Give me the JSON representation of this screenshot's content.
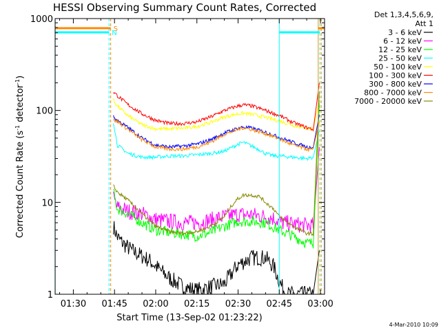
{
  "chart_data": {
    "type": "line",
    "title": "HESSI Observing Summary Count Rates, Corrected",
    "xlabel": "Start Time (13-Sep-02 01:23:22)",
    "ylabel_main": "Corrected Count Rate (s",
    "ylabel_sup1": "-1",
    "ylabel_mid": " detector",
    "ylabel_sup2": "-1",
    "ylabel_end": ")",
    "y_scale": "log",
    "xlim": [
      "01:23:22",
      "03:01:30"
    ],
    "ylim": [
      1,
      1000
    ],
    "x_tick_labels": [
      "01:30",
      "01:45",
      "02:00",
      "02:15",
      "02:30",
      "02:45",
      "03:00"
    ],
    "x_tick_minutes": [
      90,
      105,
      120,
      135,
      150,
      165,
      180
    ],
    "y_tick_labels": [
      "1",
      "10",
      "100",
      "1000"
    ],
    "y_tick_values": [
      1,
      10,
      100,
      1000
    ],
    "legend_header": [
      "Det 1,3,4,5,6,9,",
      "Att 1"
    ],
    "series": [
      {
        "name": "3 - 6 keV",
        "color": "#000000",
        "x_min": [
          104.6,
          106,
          108,
          110,
          112,
          115,
          118,
          121,
          125,
          130,
          135,
          140,
          145,
          150,
          155,
          160,
          163,
          164.6,
          166,
          168,
          171,
          175,
          177.5,
          179.6
        ],
        "values": [
          5.5,
          4.2,
          3.6,
          3.2,
          2.9,
          2.6,
          2.3,
          1.9,
          1.5,
          1.2,
          1.1,
          1.2,
          1.3,
          2.1,
          2.5,
          2.5,
          2.0,
          1.5,
          1.2,
          1.0,
          1.0,
          1.0,
          1.0,
          3.0
        ]
      },
      {
        "name": "6 - 12 keV",
        "color": "#ff00ff",
        "x_min": [
          104.6,
          106,
          110,
          115,
          120,
          125,
          130,
          135,
          140,
          145,
          150,
          155,
          160,
          163,
          164.6,
          166,
          170,
          175,
          177.5,
          179.6
        ],
        "values": [
          11,
          8.8,
          8.0,
          7.5,
          6.5,
          6.2,
          6.0,
          6.0,
          6.4,
          7.0,
          7.4,
          7.3,
          7.0,
          6.7,
          6.3,
          6.0,
          5.8,
          5.6,
          5.6,
          40
        ]
      },
      {
        "name": "12 - 25 keV",
        "color": "#00ff00",
        "x_min": [
          104.6,
          106,
          110,
          115,
          120,
          125,
          130,
          135,
          140,
          145,
          150,
          155,
          160,
          165,
          170,
          175,
          177.5,
          179.6
        ],
        "values": [
          13,
          8.5,
          7.5,
          6.0,
          5.0,
          4.7,
          4.5,
          4.3,
          4.7,
          5.5,
          6.2,
          6.2,
          6.0,
          5.0,
          4.3,
          3.6,
          3.6,
          120
        ]
      },
      {
        "name": "25 - 50 keV",
        "color": "#00ffff",
        "x_min": [
          104.6,
          106,
          110,
          115,
          120,
          125,
          130,
          135,
          140,
          145,
          148,
          150,
          152,
          155,
          158,
          160,
          163,
          165,
          170,
          175,
          177.5,
          179.6
        ],
        "values": [
          75,
          42,
          34,
          31,
          31,
          32,
          32,
          33,
          34,
          36,
          40,
          43,
          45,
          41,
          37,
          34,
          32,
          32,
          31,
          30,
          31,
          60
        ]
      },
      {
        "name": "50 - 100 keV",
        "color": "#ffff00",
        "x_min": [
          104.6,
          106,
          110,
          115,
          120,
          125,
          130,
          135,
          140,
          145,
          150,
          152,
          155,
          160,
          165,
          170,
          175,
          177.5,
          179.6
        ],
        "values": [
          130,
          112,
          87,
          70,
          63,
          63,
          64,
          67,
          74,
          85,
          92,
          93,
          91,
          84,
          77,
          69,
          64,
          63,
          130
        ]
      },
      {
        "name": "100 - 300 keV",
        "color": "#ff0000",
        "x_min": [
          104.6,
          106,
          110,
          115,
          120,
          125,
          130,
          135,
          140,
          145,
          150,
          152,
          155,
          160,
          165,
          170,
          175,
          177.5,
          179.6
        ],
        "values": [
          160,
          145,
          115,
          92,
          78,
          72,
          72,
          75,
          85,
          100,
          112,
          115,
          112,
          100,
          88,
          74,
          65,
          62,
          200
        ]
      },
      {
        "name": "300 - 800 keV",
        "color": "#0000ff",
        "x_min": [
          104.6,
          106,
          110,
          115,
          120,
          125,
          130,
          135,
          140,
          145,
          150,
          152,
          155,
          160,
          165,
          170,
          175,
          177.5,
          179.6
        ],
        "values": [
          85,
          78,
          65,
          50,
          42,
          40,
          41,
          43,
          48,
          57,
          64,
          66,
          64,
          58,
          51,
          45,
          40,
          40,
          90
        ]
      },
      {
        "name": "800 - 7000 keV",
        "color": "#ff8800",
        "x_min": [
          104.6,
          106,
          110,
          115,
          120,
          125,
          130,
          135,
          140,
          145,
          150,
          152,
          155,
          160,
          165,
          170,
          175,
          177.5,
          179.6
        ],
        "values": [
          78,
          76,
          62,
          48,
          40,
          38,
          38,
          40,
          45,
          55,
          62,
          65,
          62,
          56,
          49,
          42,
          38,
          37,
          75
        ]
      },
      {
        "name": "7000 - 20000 keV",
        "color": "#888800",
        "x_min": [
          104.6,
          106,
          110,
          115,
          120,
          125,
          130,
          135,
          140,
          145,
          148,
          150,
          152,
          155,
          158,
          160,
          163,
          165,
          170,
          175,
          177.5,
          179.6
        ],
        "values": [
          15,
          13,
          10.5,
          7.5,
          5.5,
          4.8,
          4.6,
          4.8,
          5.5,
          7.0,
          9.5,
          11,
          12,
          12,
          11.5,
          10,
          8.5,
          7.0,
          5.5,
          4.6,
          4.5,
          160
        ]
      }
    ],
    "flags": [
      {
        "label": "S",
        "color": "#ff8800",
        "segments": [
          [
            83.4,
            103.6
          ],
          [
            179.2,
            181.5
          ]
        ]
      },
      {
        "label": "N",
        "color": "#00ffff",
        "segments": [
          [
            83.4,
            103.0
          ],
          [
            165.0,
            179.8
          ]
        ]
      }
    ],
    "markers": {
      "cyan_solid_min": [
        83.4,
        165.0
      ],
      "cyan_dashed_min": [
        103.0,
        179.8
      ],
      "orange_dashed_min": [
        103.6,
        180.3
      ],
      "orange_solid_min": [
        179.2
      ]
    },
    "grid": false,
    "legend_position": "right"
  },
  "footer": {
    "date": "4-Mar-2010 10:09"
  }
}
